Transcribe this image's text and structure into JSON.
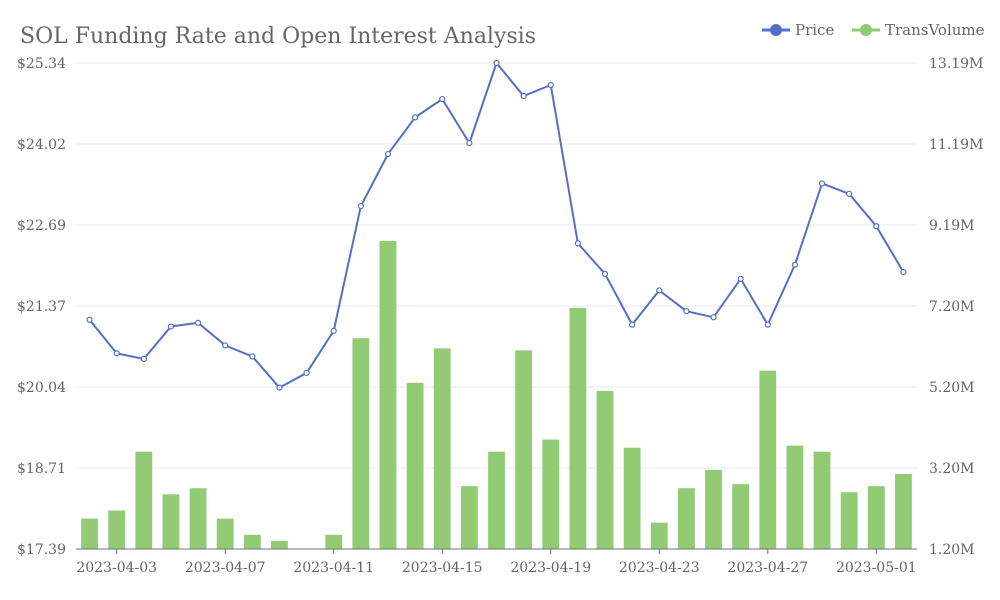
{
  "chart_data": {
    "type": "bar+line",
    "title": "SOL Funding Rate and Open Interest Analysis",
    "legend": {
      "placement": "top-right",
      "items": [
        {
          "name": "Price",
          "color": "#5470c6",
          "icon": "line-circle-icon"
        },
        {
          "name": "TransVolume",
          "color": "#91cc75",
          "icon": "line-circle-icon"
        }
      ]
    },
    "x": [
      "2023-04-02",
      "2023-04-03",
      "2023-04-04",
      "2023-04-05",
      "2023-04-06",
      "2023-04-07",
      "2023-04-08",
      "2023-04-09",
      "2023-04-10",
      "2023-04-11",
      "2023-04-12",
      "2023-04-13",
      "2023-04-14",
      "2023-04-15",
      "2023-04-16",
      "2023-04-17",
      "2023-04-18",
      "2023-04-19",
      "2023-04-20",
      "2023-04-21",
      "2023-04-22",
      "2023-04-23",
      "2023-04-24",
      "2023-04-25",
      "2023-04-26",
      "2023-04-27",
      "2023-04-28",
      "2023-04-29",
      "2023-04-30",
      "2023-05-01",
      "2023-05-02"
    ],
    "x_tick_labels": [
      "2023-04-03",
      "2023-04-07",
      "2023-04-11",
      "2023-04-15",
      "2023-04-19",
      "2023-04-23",
      "2023-04-27",
      "2023-05-01"
    ],
    "y_left": {
      "min": 17.39,
      "max": 25.34,
      "tick_labels": [
        "$17.39",
        "$18.71",
        "$20.04",
        "$21.37",
        "$22.69",
        "$24.02",
        "$25.34"
      ]
    },
    "y_right": {
      "min": 1.2,
      "max": 13.19,
      "tick_labels": [
        "1.20M",
        "3.20M",
        "5.20M",
        "7.20M",
        "9.19M",
        "11.19M",
        "13.19M"
      ]
    },
    "grid": true,
    "series": [
      {
        "name": "Price",
        "type": "line",
        "axis": "left",
        "color": "#5470c6",
        "values": [
          21.14,
          20.59,
          20.5,
          21.03,
          21.09,
          20.72,
          20.54,
          20.03,
          20.27,
          20.96,
          23.0,
          23.85,
          24.45,
          24.75,
          24.03,
          25.34,
          24.8,
          24.98,
          22.39,
          21.89,
          21.06,
          21.62,
          21.28,
          21.18,
          21.81,
          21.06,
          22.04,
          23.37,
          23.2,
          22.67,
          21.92
        ]
      },
      {
        "name": "TransVolume",
        "type": "bar",
        "axis": "right",
        "color": "#91cc75",
        "values": [
          1.95,
          2.15,
          3.6,
          2.55,
          2.7,
          1.95,
          1.55,
          1.4,
          null,
          1.55,
          6.4,
          8.8,
          5.3,
          6.15,
          2.75,
          3.6,
          6.1,
          3.9,
          7.15,
          5.1,
          3.7,
          1.85,
          2.7,
          3.15,
          2.8,
          5.6,
          3.75,
          3.6,
          2.6,
          2.75,
          3.05
        ]
      }
    ]
  }
}
